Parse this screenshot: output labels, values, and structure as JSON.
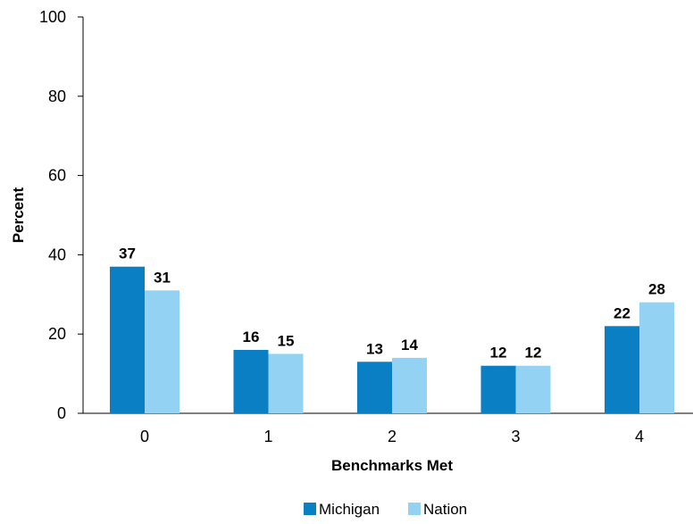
{
  "chart_data": {
    "type": "bar",
    "title": "",
    "xlabel": "Benchmarks Met",
    "ylabel": "Percent",
    "categories": [
      "0",
      "1",
      "2",
      "3",
      "4"
    ],
    "ylim": [
      0,
      100
    ],
    "yticks": [
      0,
      20,
      40,
      60,
      80,
      100
    ],
    "grid": false,
    "legend_position": "bottom",
    "series": [
      {
        "name": "Michigan",
        "color": "#0a7fc3",
        "values": [
          37,
          16,
          13,
          12,
          22
        ]
      },
      {
        "name": "Nation",
        "color": "#93d2f2",
        "values": [
          31,
          15,
          14,
          12,
          28
        ]
      }
    ]
  }
}
